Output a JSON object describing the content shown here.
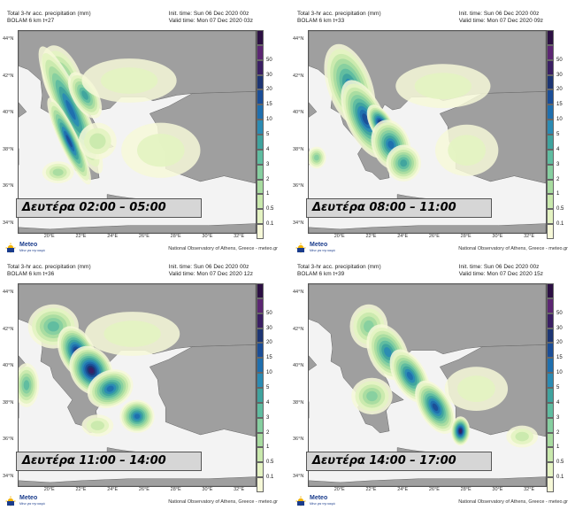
{
  "colors": {
    "sea": "#f3f3f3",
    "land": "#9f9f9f",
    "scale": [
      "#f6f8d8",
      "#e4f3c2",
      "#c9e9ad",
      "#a8dca0",
      "#86cfa0",
      "#5fbca0",
      "#3fa39e",
      "#2b8bb3",
      "#1f6fae",
      "#1b4e97",
      "#1d3573",
      "#3a1f63",
      "#5b2672",
      "#2c1043"
    ]
  },
  "panels": [
    {
      "title1": "Total 3-hr acc. precipitation (mm)",
      "title2": "BOLAM 6 km t+27",
      "init": "Init. time: Sun 06 Dec 2020 00z",
      "valid": "Valid time: Mon 07 Dec 2020 03z",
      "caption": "Δευτέρα 02:00 – 05:00",
      "credit": "National Observatory of Athens, Greece - meteo.gr"
    },
    {
      "title1": "Total 3-hr acc. precipitation (mm)",
      "title2": "BOLAM 6 km t+33",
      "init": "Init. time: Sun 06 Dec 2020 00z",
      "valid": "Valid time: Mon 07 Dec 2020 09z",
      "caption": "Δευτέρα 08:00 – 11:00",
      "credit": "National Observatory of Athens, Greece - meteo.gr"
    },
    {
      "title1": "Total 3-hr acc. precipitation (mm)",
      "title2": "BOLAM 6 km t+36",
      "init": "Init. time: Sun 06 Dec 2020 00z",
      "valid": "Valid time: Mon 07 Dec 2020 12z",
      "caption": "Δευτέρα 11:00 – 14:00",
      "credit": "National Observatory of Athens, Greece - meteo.gr"
    },
    {
      "title1": "Total 3-hr acc. precipitation (mm)",
      "title2": "BOLAM 6 km t+39",
      "init": "Init. time: Sun 06 Dec 2020 00z",
      "valid": "Valid time: Mon 07 Dec 2020 15z",
      "caption": "Δευτέρα 14:00 – 17:00",
      "credit": "National Observatory of Athens, Greece - meteo.gr"
    }
  ],
  "lat_labels": [
    "44°N",
    "42°N",
    "40°N",
    "38°N",
    "36°N",
    "34°N"
  ],
  "lon_labels": [
    "20°E",
    "22°E",
    "24°E",
    "26°E",
    "28°E",
    "30°E",
    "32°E"
  ],
  "scale_labels": [
    "50",
    "30",
    "20",
    "15",
    "10",
    "5",
    "4",
    "3",
    "2",
    "1",
    "0.5",
    "0.1"
  ],
  "logo": {
    "name": "Meteo",
    "sub": "Μένε για την καιρό"
  }
}
